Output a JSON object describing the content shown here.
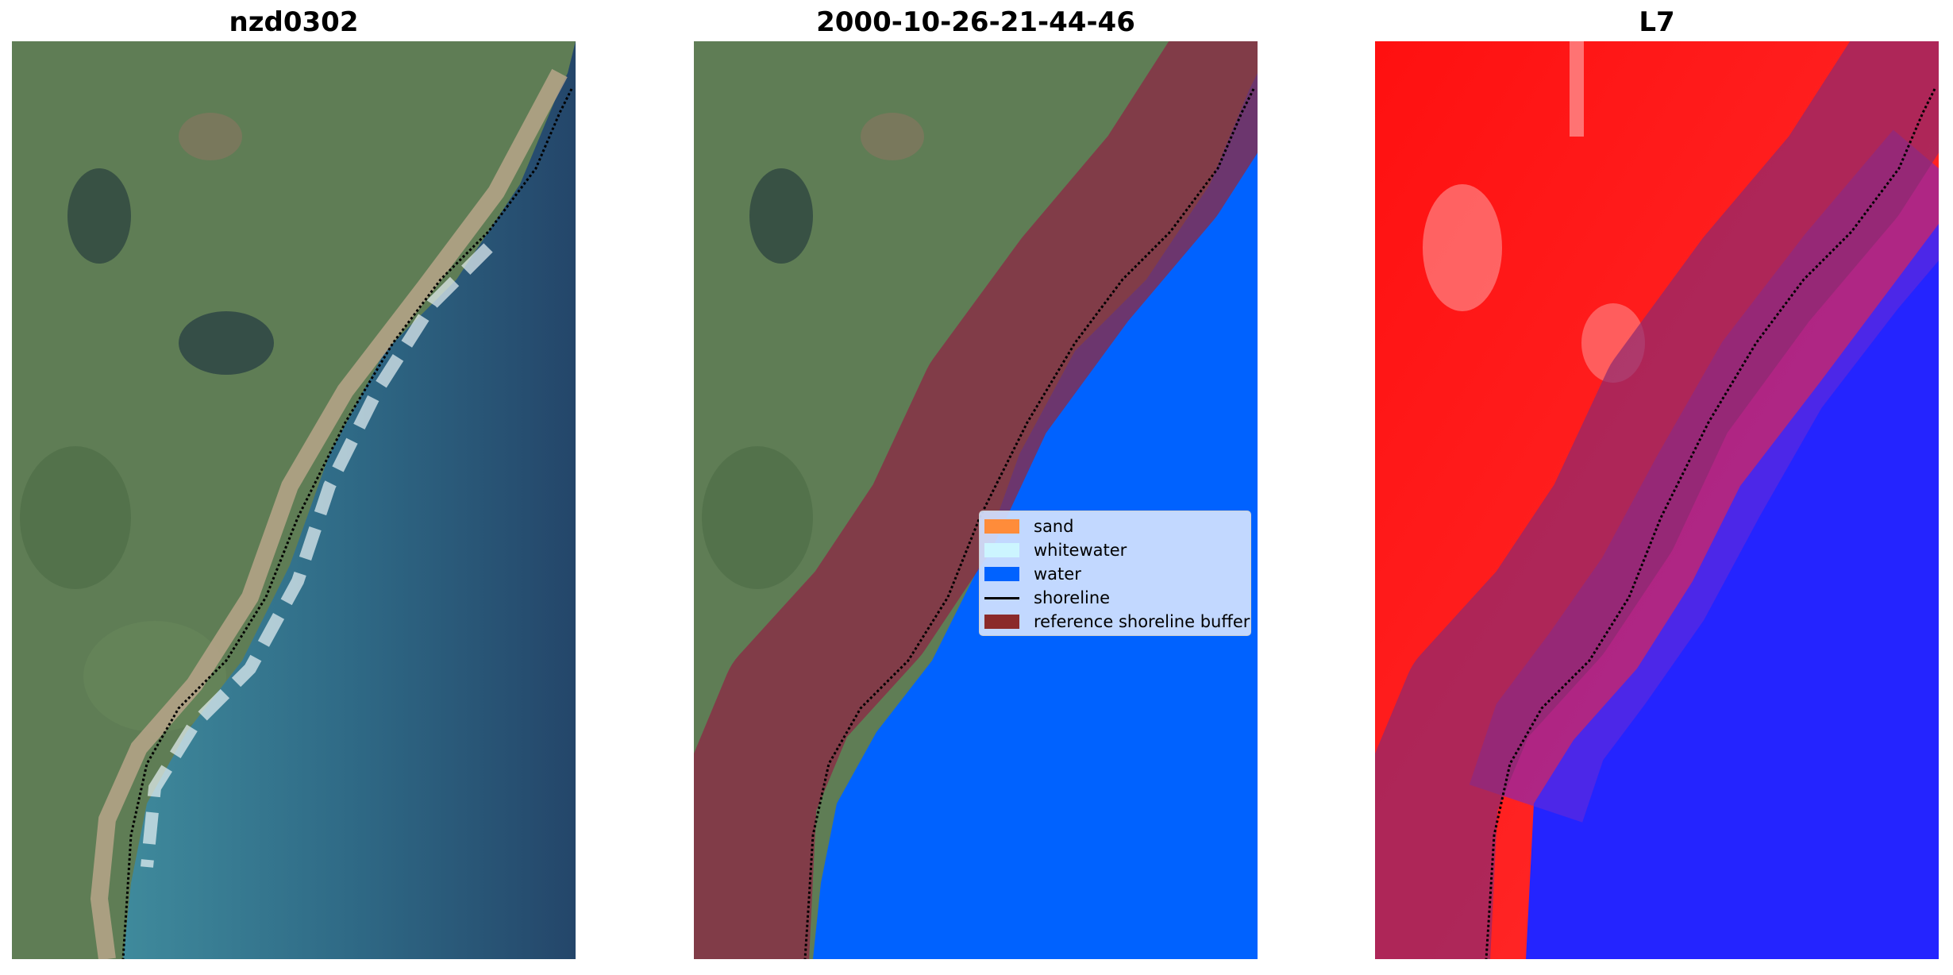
{
  "panels": [
    {
      "title": "nzd0302"
    },
    {
      "title": "2000-10-26-21-44-46"
    },
    {
      "title": "L7"
    }
  ],
  "legend": {
    "items": [
      {
        "label": "sand",
        "color": "#ff8c3a",
        "kind": "patch"
      },
      {
        "label": "whitewater",
        "color": "#ccf5ff",
        "kind": "patch"
      },
      {
        "label": "water",
        "color": "#0062ff",
        "kind": "patch"
      },
      {
        "label": "shoreline",
        "color": "#000000",
        "kind": "line"
      },
      {
        "label": "reference shoreline buffer",
        "color": "#8b2a2a",
        "kind": "patch"
      }
    ]
  },
  "colors": {
    "land": "#5d7b52",
    "ocean_deep": "#2a4a68",
    "ocean_shallow": "#3f8a9c",
    "beach": "#b7a58a",
    "surf": "#e8f2f5",
    "classified_water": "#0062ff",
    "buffer": "#8b2a45",
    "index_land": "#ff1010",
    "index_water": "#2020ff"
  }
}
